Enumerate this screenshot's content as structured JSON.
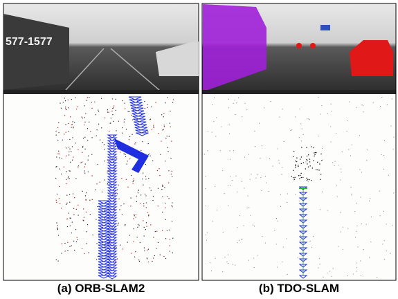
{
  "panels": [
    {
      "caption": "(a) ORB-SLAM2",
      "sign": "577-1577"
    },
    {
      "caption": "(b) TDO-SLAM"
    }
  ]
}
